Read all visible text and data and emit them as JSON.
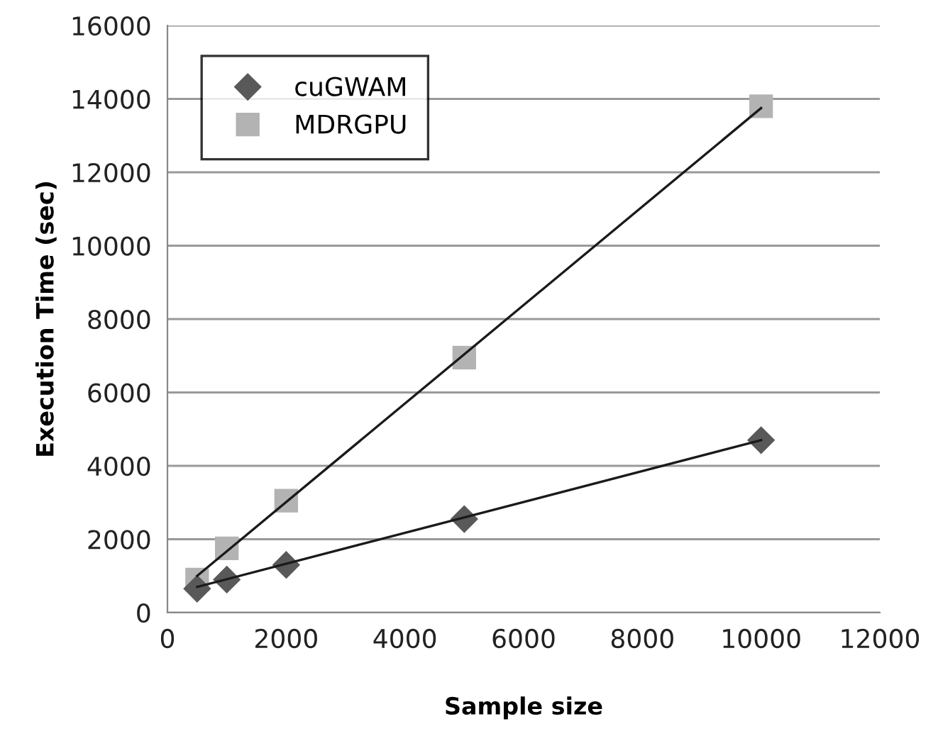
{
  "chart_data": {
    "type": "scatter",
    "xlabel": "Sample size",
    "ylabel": "Execution Time (sec)",
    "xlim": [
      0,
      12000
    ],
    "xticks": [
      0,
      2000,
      4000,
      6000,
      8000,
      10000,
      12000
    ],
    "ylim": [
      0,
      16000
    ],
    "yticks": [
      0,
      2000,
      4000,
      6000,
      8000,
      10000,
      12000,
      14000,
      16000
    ],
    "grid": "y",
    "legend": "top left",
    "series": [
      {
        "name": "cuGWAM",
        "color": "#595959",
        "marker": "diamond",
        "x": [
          500,
          1000,
          2000,
          5000,
          10000
        ],
        "values": [
          650,
          900,
          1300,
          2550,
          4700
        ]
      },
      {
        "name": "MDRGPU",
        "color": "#b3b3b3",
        "marker": "square",
        "x": [
          500,
          1000,
          2000,
          5000,
          10000
        ],
        "values": [
          900,
          1750,
          3050,
          6950,
          13800
        ]
      },
      {
        "type": "line",
        "color": "#1a1a1a",
        "x": [
          500,
          10000
        ],
        "values": [
          700,
          4700
        ]
      },
      {
        "type": "line",
        "color": "#1a1a1a",
        "x": [
          500,
          10000
        ],
        "values": [
          1000,
          13750
        ]
      }
    ]
  }
}
